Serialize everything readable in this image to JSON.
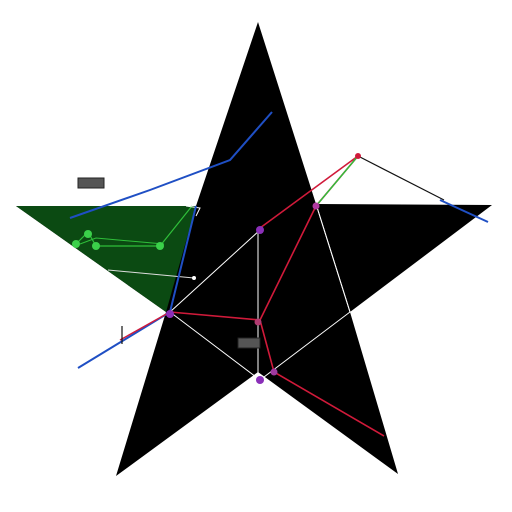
{
  "colors": {
    "background": "#ffffff",
    "star_fill": "#000000",
    "wedge_fill": "#0b4a12",
    "blue_line": "#1f4fc4",
    "red_line": "#d01a3a",
    "white_line": "#ffffff",
    "green_accent": "#2fbf3a",
    "node_purple": "#8a2fb8",
    "node_green": "#3bd14a",
    "tag_fill": "#555555",
    "black_line": "#111111"
  },
  "labels": {
    "upper_left_line1": "",
    "upper_left_line2": "",
    "right": "",
    "left_line1": "",
    "left_line2": "",
    "left_line3": "",
    "bottom": "",
    "tag_upper": "",
    "tag_center": ""
  }
}
